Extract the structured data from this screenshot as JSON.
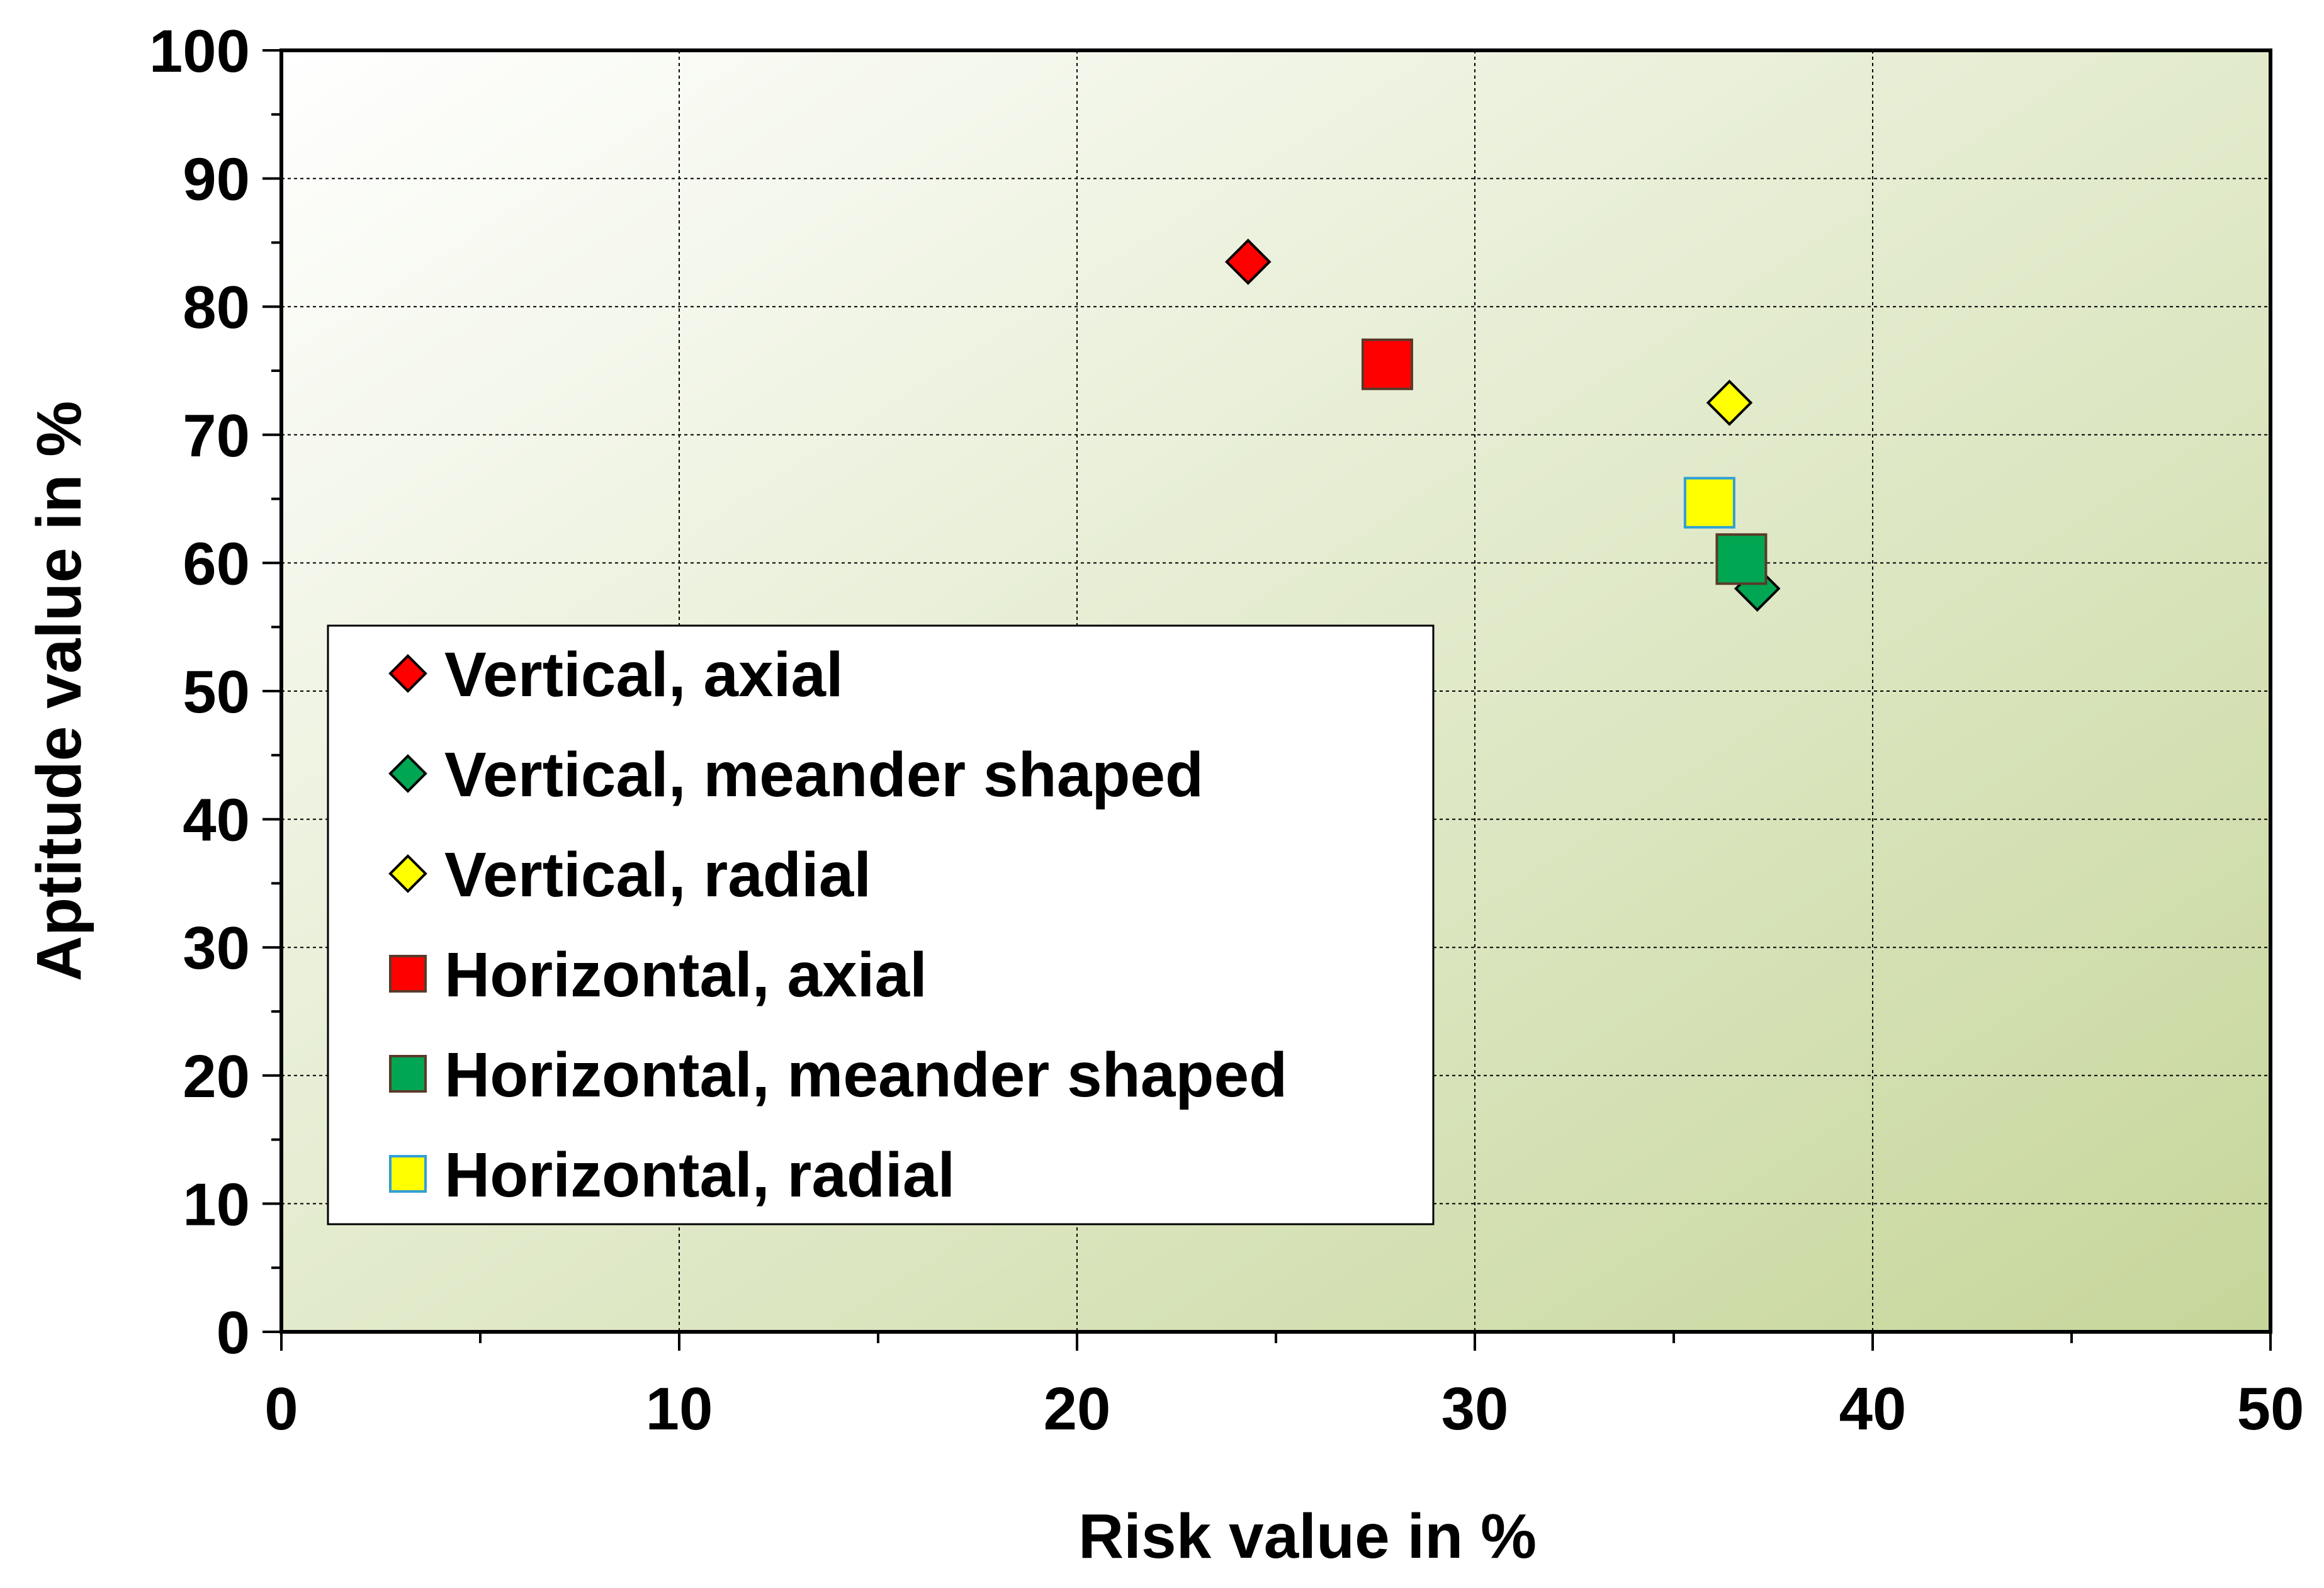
{
  "chart_data": {
    "type": "scatter",
    "title": "",
    "xlabel": "Risk value in %",
    "ylabel": "Aptitude value in %",
    "xlim": [
      0,
      50
    ],
    "ylim": [
      0,
      100
    ],
    "x_major_ticks": [
      0,
      10,
      20,
      30,
      40,
      50
    ],
    "y_major_ticks": [
      0,
      10,
      20,
      30,
      40,
      50,
      60,
      70,
      80,
      90,
      100
    ],
    "x_tick_labels": [
      "0",
      "10",
      "20",
      "30",
      "40",
      "50"
    ],
    "y_tick_labels": [
      "0",
      "10",
      "20",
      "30",
      "40",
      "50",
      "60",
      "70",
      "80",
      "90",
      "100"
    ],
    "x_minor_step": 5,
    "y_minor_step": 5,
    "grid": true,
    "legend_position": "left-middle",
    "background": {
      "gradient_start": "#ffffff",
      "gradient_end": "#c6d69a"
    },
    "series": [
      {
        "name": "Vertical, axial",
        "marker": "diamond",
        "color": "#ff0000",
        "x": [
          24.3
        ],
        "y": [
          83.5
        ]
      },
      {
        "name": "Vertical, meander shaped",
        "marker": "diamond",
        "color": "#00a651",
        "x": [
          37.1
        ],
        "y": [
          58
        ]
      },
      {
        "name": "Vertical, radial",
        "marker": "diamond",
        "color": "#ffff00",
        "x": [
          36.4
        ],
        "y": [
          72.5
        ]
      },
      {
        "name": "Horizontal, axial",
        "marker": "square",
        "color": "#ff0000",
        "x": [
          27.8
        ],
        "y": [
          75.5
        ]
      },
      {
        "name": "Horizontal, meander shaped",
        "marker": "square",
        "color": "#00a651",
        "x": [
          36.7
        ],
        "y": [
          60.3
        ]
      },
      {
        "name": "Horizontal, radial",
        "marker": "square",
        "color": "#ffff00",
        "x": [
          35.9
        ],
        "y": [
          64.7
        ]
      }
    ]
  }
}
